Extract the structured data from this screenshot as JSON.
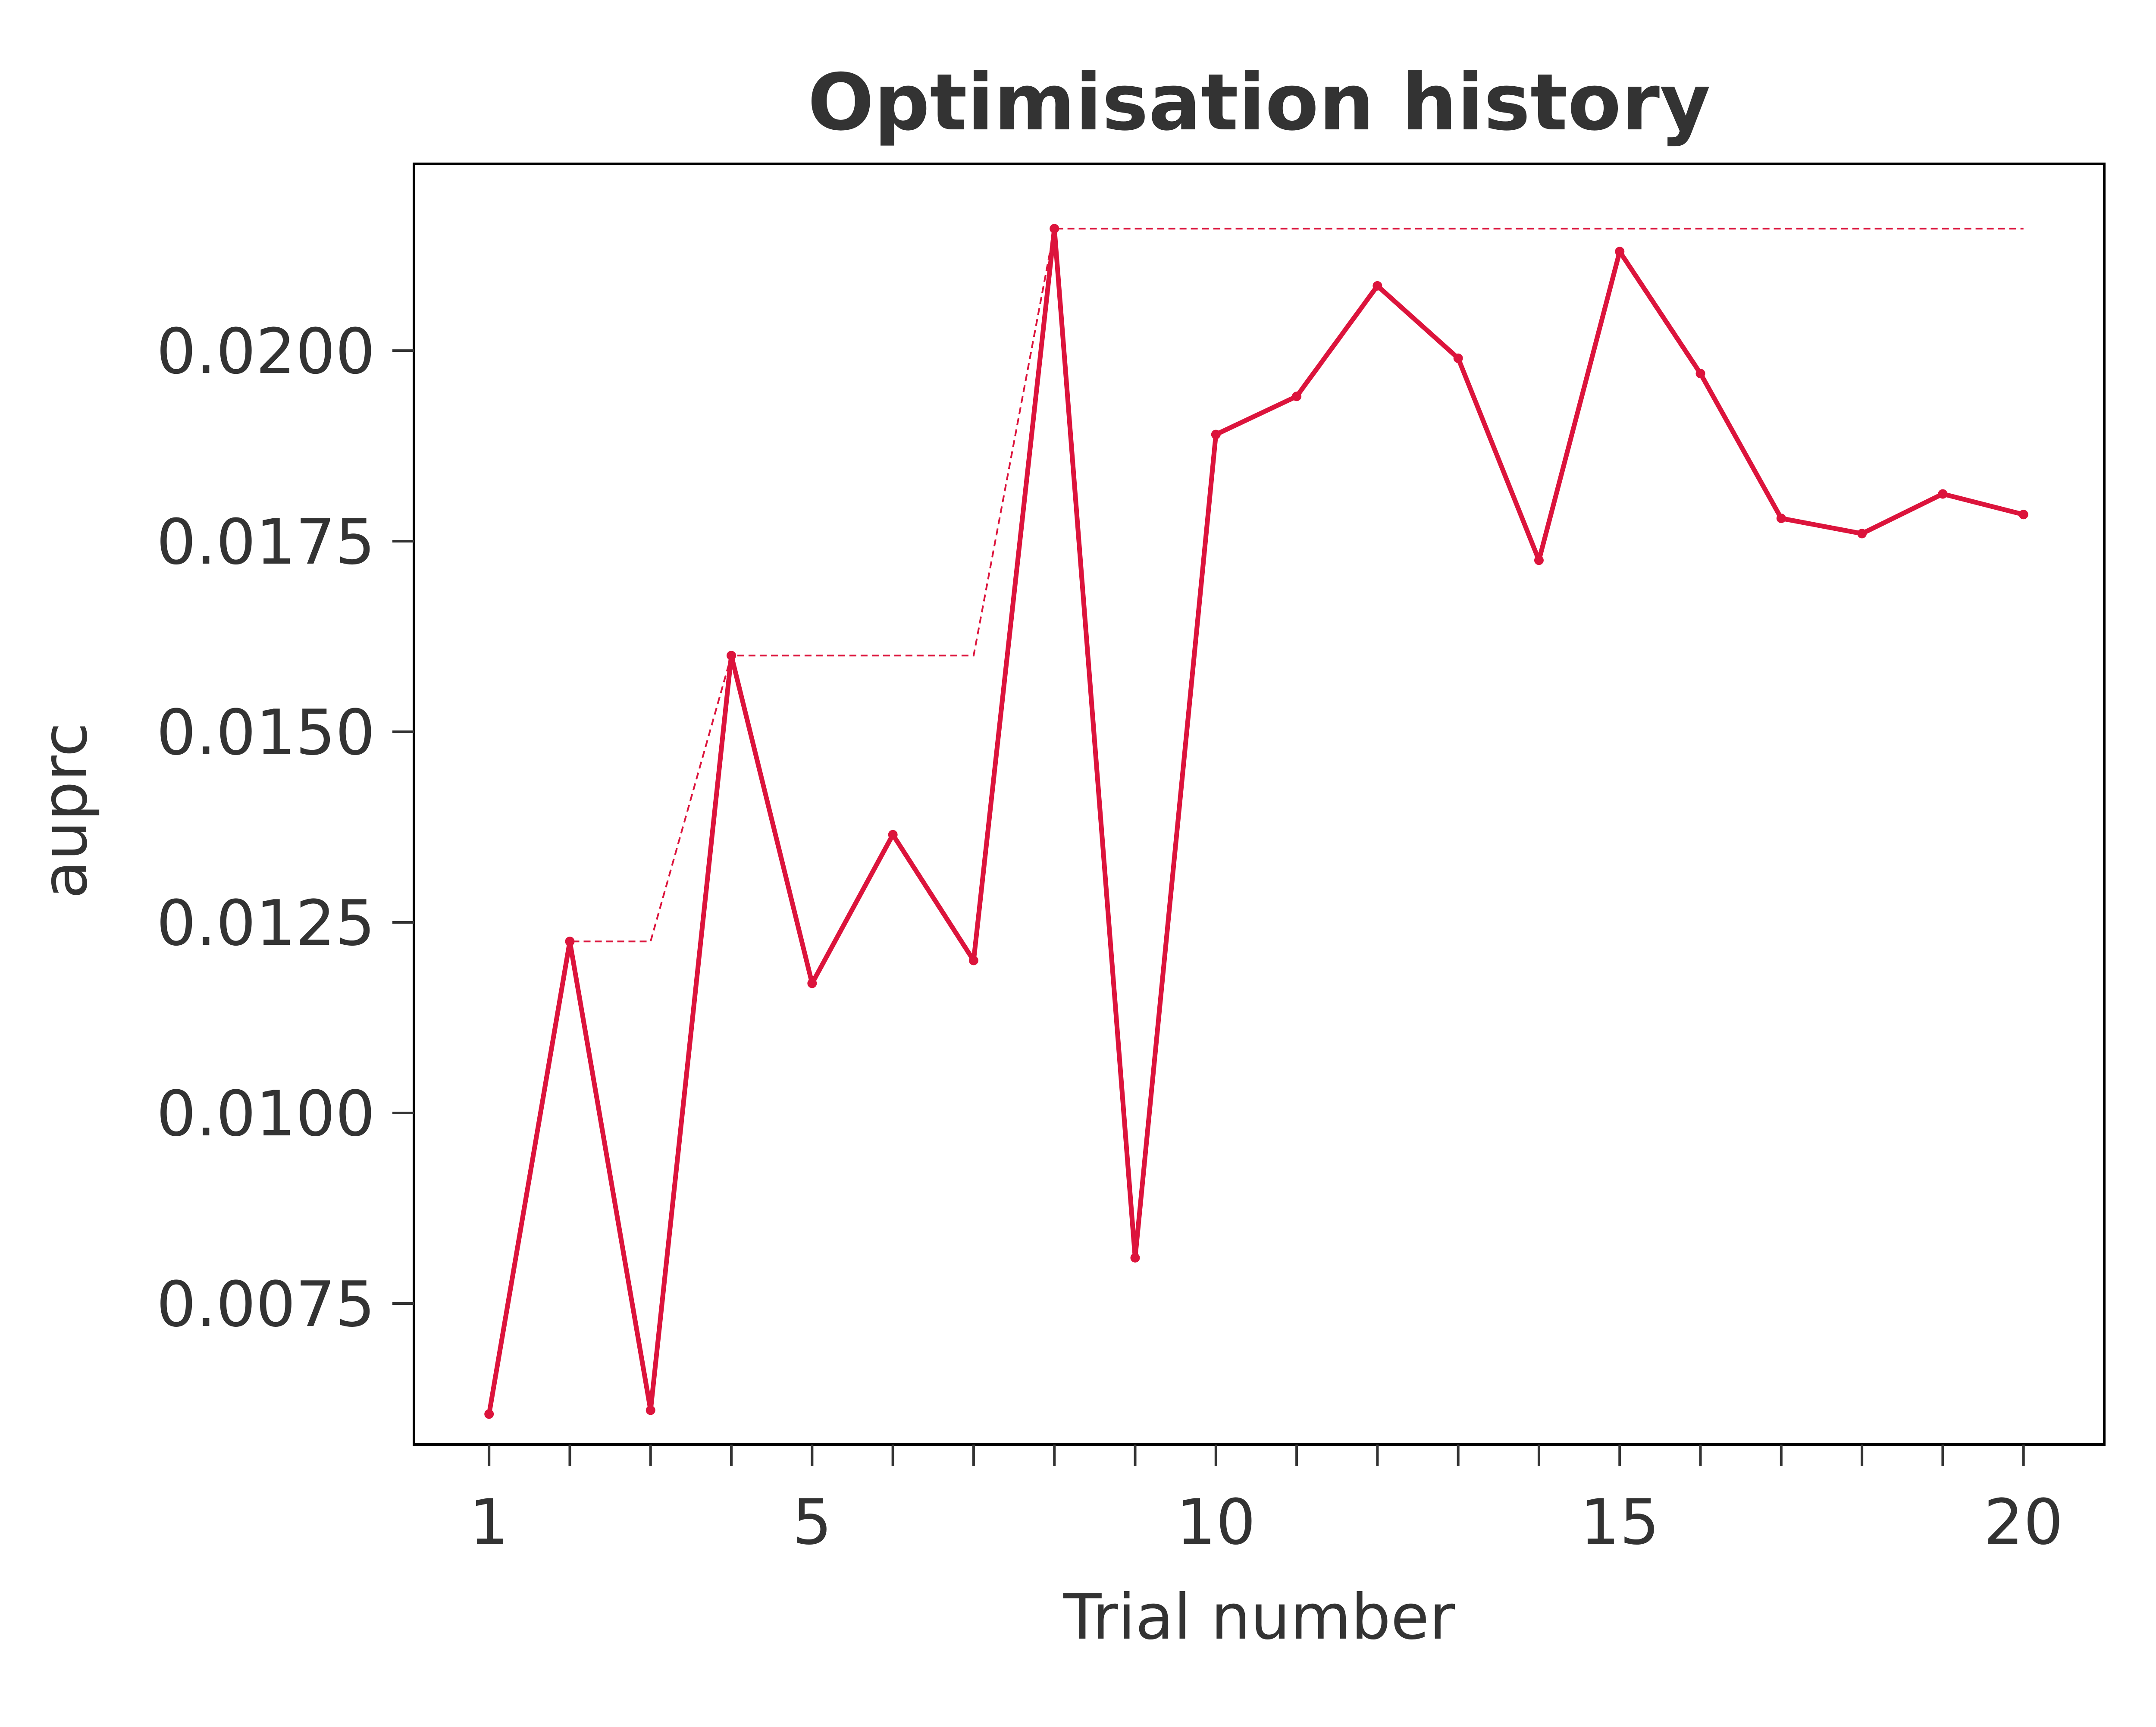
{
  "chart_data": {
    "type": "line",
    "title": "Optimisation history",
    "xlabel": "Trial number",
    "ylabel": "auprc",
    "x": [
      1,
      2,
      3,
      4,
      5,
      6,
      7,
      8,
      9,
      10,
      11,
      12,
      13,
      14,
      15,
      16,
      17,
      18,
      19,
      20
    ],
    "series": [
      {
        "values": [
          0.00605,
          0.01225,
          0.0061,
          0.016,
          0.0117,
          0.01365,
          0.012,
          0.0216,
          0.0081,
          0.0189,
          0.0194,
          0.02085,
          0.0199,
          0.01725,
          0.0213,
          0.0197,
          0.0178,
          0.0176,
          0.01812,
          0.01785
        ],
        "style": "solid",
        "color": "#dc143c"
      },
      {
        "values": [
          0.00605,
          0.01225,
          0.01225,
          0.016,
          0.016,
          0.016,
          0.016,
          0.0216,
          0.0216,
          0.0216,
          0.0216,
          0.0216,
          0.0216,
          0.0216,
          0.0216,
          0.0216,
          0.0216,
          0.0216,
          0.0216,
          0.0216
        ],
        "style": "dashed",
        "color": "#dc143c"
      }
    ],
    "x_ticks_labeled": [
      1,
      5,
      10,
      15,
      20
    ],
    "x_tick_labels": [
      "1",
      "5",
      "10",
      "15",
      "20"
    ],
    "y_ticks": [
      0.0075,
      0.01,
      0.0125,
      0.015,
      0.0175,
      0.02
    ],
    "y_tick_labels": [
      "0.0075",
      "0.0100",
      "0.0125",
      "0.0150",
      "0.0175",
      "0.0200"
    ],
    "xlim": [
      0.07,
      21.0
    ],
    "ylim": [
      0.00565,
      0.02245
    ],
    "grid": false,
    "legend": "none"
  }
}
